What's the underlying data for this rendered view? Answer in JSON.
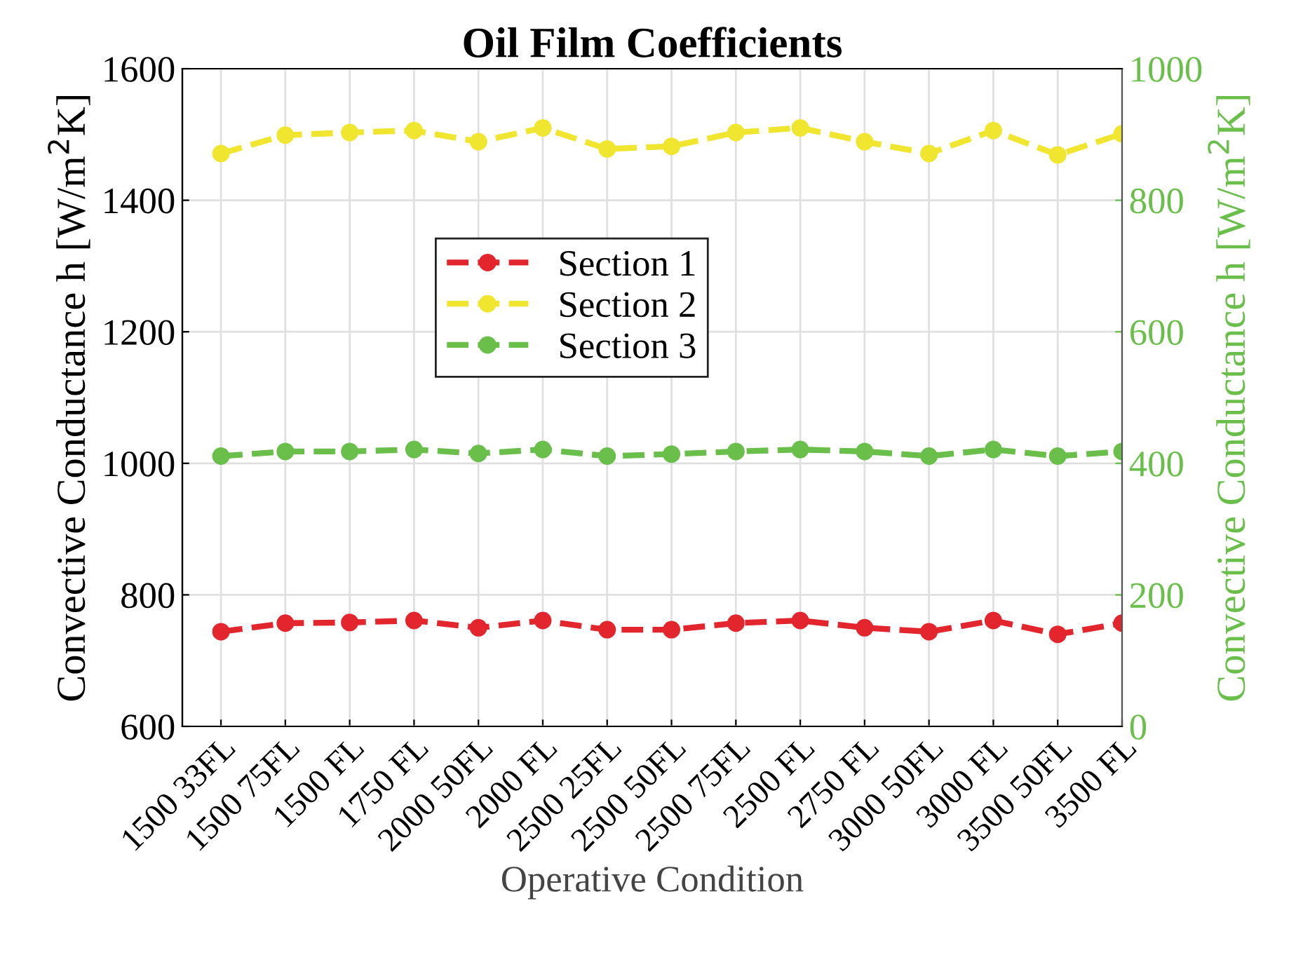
{
  "chart_data": {
    "type": "line",
    "title": "Oil Film Coefficients",
    "xlabel": "Operative Condition",
    "ylabel": "Convective Conductance h [W/m$^{2}$K]",
    "y2label": "Convective Conductance h [W/m$^{2}$K]",
    "categories": [
      "1500 33FL",
      "1500 75FL",
      "1500 FL",
      "1750 FL",
      "2000 50FL",
      "2000 FL",
      "2500 25FL",
      "2500 50FL",
      "2500 75FL",
      "2500 FL",
      "2750 FL",
      "3000 50FL",
      "3000 FL",
      "3500 50FL",
      "3500 FL"
    ],
    "series": [
      {
        "name": "Section 1",
        "color": "#e3262e",
        "values": [
          744,
          757,
          758,
          761,
          750,
          761,
          747,
          747,
          757,
          761,
          750,
          744,
          761,
          740,
          757
        ]
      },
      {
        "name": "Section 2",
        "color": "#f0e630",
        "values": [
          1471,
          1499,
          1503,
          1506,
          1489,
          1510,
          1478,
          1482,
          1503,
          1510,
          1489,
          1471,
          1506,
          1469,
          1501
        ]
      },
      {
        "name": "Section 3",
        "color": "#6abf4b",
        "axis": "y2",
        "values": [
          411,
          418,
          418,
          421,
          415,
          421,
          411,
          414,
          418,
          421,
          418,
          411,
          421,
          411,
          418
        ]
      }
    ],
    "ylim": [
      600,
      1600
    ],
    "yticks": [
      600,
      800,
      1000,
      1200,
      1400,
      1600
    ],
    "y2lim": [
      0,
      1000
    ],
    "y2ticks": [
      0,
      200,
      400,
      600,
      800,
      1000
    ],
    "grid": true,
    "legend": "top left",
    "marker": "circle",
    "line_style": "dashed"
  }
}
